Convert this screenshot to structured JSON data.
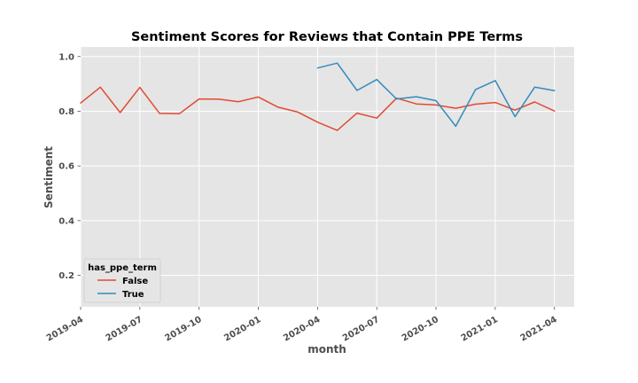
{
  "chart_data": {
    "type": "line",
    "title": "Sentiment Scores for Reviews that Contain PPE Terms",
    "xlabel": "month",
    "ylabel": "Sentiment",
    "x_ticks": [
      "2019-04",
      "2019-07",
      "2019-10",
      "2020-01",
      "2020-04",
      "2020-07",
      "2020-10",
      "2021-01",
      "2021-04"
    ],
    "y_ticks": [
      0.2,
      0.4,
      0.6,
      0.8,
      1.0
    ],
    "y_tick_labels": [
      "0.2",
      "0.4",
      "0.6",
      "0.8",
      "1.0"
    ],
    "xlim": [
      "2019-04",
      "2021-05"
    ],
    "ylim": [
      0.085,
      1.035
    ],
    "grid": true,
    "legend": {
      "title": "has_ppe_term",
      "position": "lower-left"
    },
    "series": [
      {
        "name": "False",
        "color": "#E24A33",
        "x": [
          "2019-04",
          "2019-05",
          "2019-06",
          "2019-07",
          "2019-08",
          "2019-09",
          "2019-10",
          "2019-11",
          "2019-12",
          "2020-01",
          "2020-02",
          "2020-03",
          "2020-04",
          "2020-05",
          "2020-06",
          "2020-07",
          "2020-08",
          "2020-09",
          "2020-10",
          "2020-11",
          "2020-12",
          "2021-01",
          "2021-02",
          "2021-03",
          "2021-04"
        ],
        "values": [
          0.83,
          0.888,
          0.795,
          0.887,
          0.792,
          0.791,
          0.845,
          0.844,
          0.835,
          0.852,
          0.815,
          0.797,
          0.76,
          0.73,
          0.793,
          0.775,
          0.848,
          0.827,
          0.823,
          0.811,
          0.826,
          0.832,
          0.804,
          0.834,
          0.801
        ]
      },
      {
        "name": "True",
        "color": "#348ABD",
        "x": [
          "2020-04",
          "2020-05",
          "2020-06",
          "2020-07",
          "2020-08",
          "2020-09",
          "2020-10",
          "2020-11",
          "2020-12",
          "2021-01",
          "2021-02",
          "2021-03",
          "2021-04"
        ],
        "values": [
          0.958,
          0.976,
          0.876,
          0.916,
          0.845,
          0.853,
          0.839,
          0.745,
          0.879,
          0.912,
          0.78,
          0.888,
          0.875
        ]
      }
    ]
  }
}
